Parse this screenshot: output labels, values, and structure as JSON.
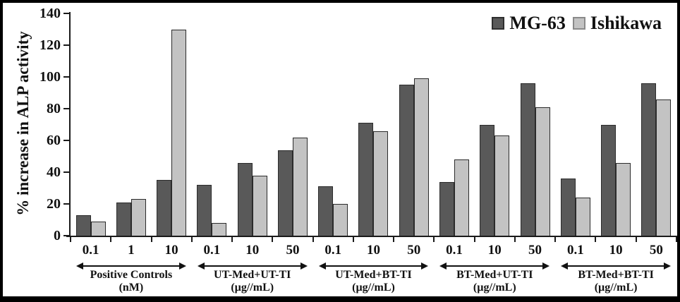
{
  "chart_data": {
    "type": "bar",
    "title": "",
    "ylabel": "% increase in ALP activity",
    "xlabel": "",
    "ylim": [
      0,
      140
    ],
    "ytick_step": 20,
    "yticks": [
      0,
      20,
      40,
      60,
      80,
      100,
      120,
      140
    ],
    "grid": false,
    "legend_position": "top-right",
    "series_names": [
      "MG-63",
      "Ishikawa"
    ],
    "series_colors": {
      "MG-63": "#595959",
      "Ishikawa": "#c3c3c3"
    },
    "groups": [
      {
        "label": "Positive Controls",
        "unit": "(nM)",
        "doses": [
          "0.1",
          "1",
          "10"
        ],
        "values": {
          "MG-63": [
            13,
            21,
            35
          ],
          "Ishikawa": [
            9,
            23,
            130
          ]
        }
      },
      {
        "label": "UT-Med+UT-TI",
        "unit": "(µg//mL)",
        "doses": [
          "0.1",
          "10",
          "50"
        ],
        "values": {
          "MG-63": [
            32,
            46,
            54
          ],
          "Ishikawa": [
            8,
            38,
            62
          ]
        }
      },
      {
        "label": "UT-Med+BT-TI",
        "unit": "(µg//mL)",
        "doses": [
          "0.1",
          "10",
          "50"
        ],
        "values": {
          "MG-63": [
            31,
            71,
            95
          ],
          "Ishikawa": [
            20,
            66,
            99
          ]
        }
      },
      {
        "label": "BT-Med+UT-TI",
        "unit": "(µg//mL)",
        "doses": [
          "0.1",
          "10",
          "50"
        ],
        "values": {
          "MG-63": [
            34,
            70,
            96
          ],
          "Ishikawa": [
            48,
            63,
            81
          ]
        }
      },
      {
        "label": "BT-Med+BT-TI",
        "unit": "(µg//mL)",
        "doses": [
          "0.1",
          "10",
          "50"
        ],
        "values": {
          "MG-63": [
            36,
            70,
            96
          ],
          "Ishikawa": [
            24,
            46,
            86
          ]
        }
      }
    ]
  }
}
